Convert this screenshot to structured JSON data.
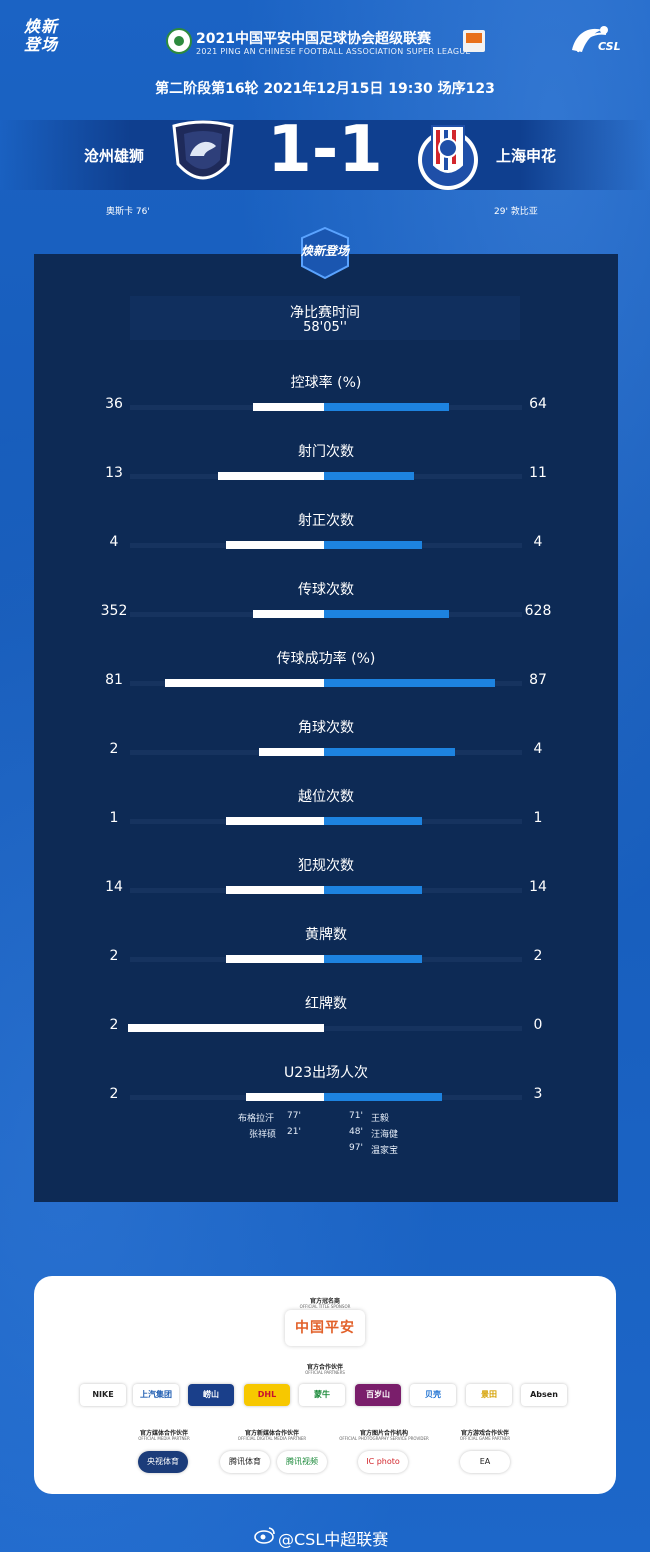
{
  "header": {
    "brand": "焕新登场",
    "title_cn": "2021中国平安中国足球协会超级联赛",
    "title_en": "2021 PING AN CHINESE FOOTBALL ASSOCIATION SUPER LEAGUE",
    "csl_logo_text": "CSL"
  },
  "match": {
    "info": "第二阶段第16轮  2021年12月15日 19:30 场序123",
    "home_team": "沧州雄狮",
    "away_team": "上海申花",
    "score": "1-1",
    "home_scorer": "奥斯卡  76'",
    "away_scorer": "29'  敦比亚"
  },
  "panel_badge": "焕新登场",
  "net_time": {
    "label": "净比赛时间",
    "value": "58'05''"
  },
  "stats": [
    {
      "label": "控球率 (%)",
      "home": "36",
      "away": "64",
      "home_frac": 0.36,
      "away_frac": 0.64
    },
    {
      "label": "射门次数",
      "home": "13",
      "away": "11",
      "home_frac": 0.54,
      "away_frac": 0.46
    },
    {
      "label": "射正次数",
      "home": "4",
      "away": "4",
      "home_frac": 0.5,
      "away_frac": 0.5
    },
    {
      "label": "传球次数",
      "home": "352",
      "away": "628",
      "home_frac": 0.36,
      "away_frac": 0.64
    },
    {
      "label": "传球成功率 (%)",
      "home": "81",
      "away": "87",
      "home_frac": 0.81,
      "away_frac": 0.87
    },
    {
      "label": "角球次数",
      "home": "2",
      "away": "4",
      "home_frac": 0.33,
      "away_frac": 0.67
    },
    {
      "label": "越位次数",
      "home": "1",
      "away": "1",
      "home_frac": 0.5,
      "away_frac": 0.5
    },
    {
      "label": "犯规次数",
      "home": "14",
      "away": "14",
      "home_frac": 0.5,
      "away_frac": 0.5
    },
    {
      "label": "黄牌数",
      "home": "2",
      "away": "2",
      "home_frac": 0.5,
      "away_frac": 0.5
    },
    {
      "label": "红牌数",
      "home": "2",
      "away": "0",
      "home_frac": 1.0,
      "away_frac": 0.0
    },
    {
      "label": "U23出场人次",
      "home": "2",
      "away": "3",
      "home_frac": 0.4,
      "away_frac": 0.6
    }
  ],
  "u23_players": {
    "home": [
      {
        "name": "布格拉汗",
        "minute": "77'"
      },
      {
        "name": "张祥硕",
        "minute": "21'"
      }
    ],
    "away": [
      {
        "minute": "71'",
        "name": "王毅"
      },
      {
        "minute": "48'",
        "name": "汪海健"
      },
      {
        "minute": "97'",
        "name": "温家宝"
      }
    ]
  },
  "sponsors": {
    "title_sponsor_head": "官方冠名商",
    "title_sponsor_sub": "OFFICIAL TITLE SPONSOR",
    "title_sponsor_name": "中国平安",
    "partners_head": "官方合作伙伴",
    "partners_sub": "OFFICIAL PARTNERS",
    "partners": [
      "NIKE",
      "上汽集团",
      "崂山",
      "DHL",
      "蒙牛",
      "百岁山",
      "贝壳",
      "景田",
      "Absen"
    ],
    "media_head": "官方媒体合作伙伴",
    "media_sub": "OFFICIAL MEDIA PARTNER",
    "media": [
      "央视体育"
    ],
    "digital_head": "官方新媒体合作伙伴",
    "digital_sub": "OFFICIAL DIGITAL MEDIA PARTNER",
    "digital": [
      "腾讯体育",
      "腾讯视频"
    ],
    "photo_head": "官方图片合作机构",
    "photo_sub": "OFFICIAL PHOTOGRAPHY SERVICE PROVIDER",
    "photo": [
      "IC photo"
    ],
    "game_head": "官方游戏合作伙伴",
    "game_sub": "OFFICIAL GAME PARTNER",
    "game": [
      "EA"
    ]
  },
  "footer": {
    "weibo": "@CSL中超联赛"
  },
  "colors": {
    "background": "#1a62c2",
    "panel": "#0d2a55",
    "home_bar": "#ffffff",
    "away_bar": "#1d83e0"
  }
}
